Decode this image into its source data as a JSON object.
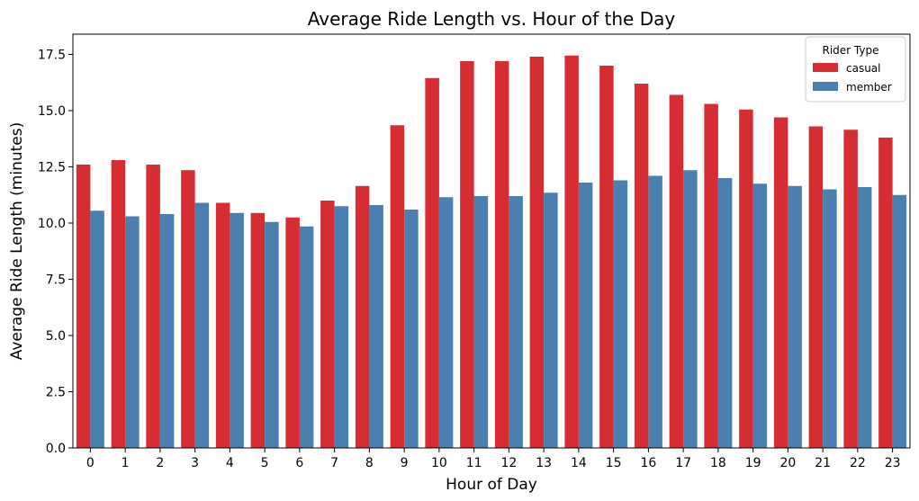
{
  "chart_data": {
    "type": "bar",
    "title": "Average Ride Length vs. Hour of the Day",
    "xlabel": "Hour of Day",
    "ylabel": "Average Ride Length (minutes)",
    "categories": [
      "0",
      "1",
      "2",
      "3",
      "4",
      "5",
      "6",
      "7",
      "8",
      "9",
      "10",
      "11",
      "12",
      "13",
      "14",
      "15",
      "16",
      "17",
      "18",
      "19",
      "20",
      "21",
      "22",
      "23"
    ],
    "ylim": [
      0,
      18.4
    ],
    "yticks": [
      "0.0",
      "2.5",
      "5.0",
      "7.5",
      "10.0",
      "12.5",
      "15.0",
      "17.5"
    ],
    "grid": false,
    "legend": {
      "title": "Rider Type",
      "placement": "top-right"
    },
    "series": [
      {
        "name": "casual",
        "color": "#d62d33",
        "values": [
          12.6,
          12.8,
          12.6,
          12.35,
          10.9,
          10.45,
          10.25,
          11.0,
          11.65,
          14.35,
          16.45,
          17.2,
          17.2,
          17.4,
          17.45,
          17.0,
          16.2,
          15.7,
          15.3,
          15.05,
          14.7,
          14.3,
          14.15,
          13.8
        ]
      },
      {
        "name": "member",
        "color": "#4a7fb0",
        "values": [
          10.55,
          10.3,
          10.4,
          10.9,
          10.45,
          10.05,
          9.85,
          10.75,
          10.8,
          10.6,
          11.15,
          11.2,
          11.2,
          11.35,
          11.8,
          11.9,
          12.1,
          12.35,
          12.0,
          11.75,
          11.65,
          11.5,
          11.6,
          11.25
        ]
      }
    ]
  }
}
